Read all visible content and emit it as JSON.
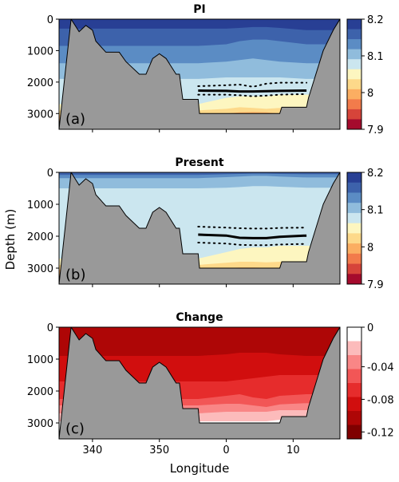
{
  "chart_data": {
    "type": "contour",
    "xlabel": "Longitude",
    "ylabel": "Depth (m)",
    "xticks": [
      340,
      350,
      0,
      10
    ],
    "yticks": [
      0,
      1000,
      2000,
      3000
    ],
    "x_domain": [
      -25,
      17
    ],
    "ylim": [
      3500,
      0
    ],
    "panels": [
      {
        "label": "(a)",
        "title": "PI",
        "colorbar": {
          "ticks": [
            "8.2",
            "8.1",
            "8",
            "7.9"
          ],
          "bands": [
            "#283f94",
            "#3d62ab",
            "#5b8cc4",
            "#90bcdc",
            "#cbe6ef",
            "#fdf6c0",
            "#fdd98a",
            "#fbae62",
            "#f27b4b",
            "#d6443a",
            "#a50b2d"
          ]
        },
        "layers": [
          {
            "value": "#3d62ab",
            "y": [
              300,
              300,
              280,
              250,
              250,
              280,
              350
            ]
          },
          {
            "value": "#5b8cc4",
            "y": [
              850,
              800,
              700,
              650,
              650,
              700,
              800
            ]
          },
          {
            "value": "#90bcdc",
            "y": [
              1400,
              1350,
              1300,
              1250,
              1300,
              1350,
              1400
            ]
          },
          {
            "value": "#cbe6ef",
            "y": [
              1900,
              1850,
              1850,
              1850,
              1850,
              1850,
              1900
            ]
          },
          {
            "value": "#fdf6c0",
            "y": [
              2700,
              2500,
              2450,
              2450,
              2450,
              2400,
              2400
            ]
          },
          {
            "value": "#fdd98a",
            "y": [
              2900,
              2850,
              2800,
              2820,
              2850,
              2820,
              2800
            ]
          },
          {
            "value": "#fbae62",
            "y": [
              3050,
              3000,
              2960,
              2950,
              2960,
              3000,
              3050
            ]
          }
        ],
        "lysocline": {
          "solid": [
            2270,
            2280,
            2300,
            2300,
            2290,
            2280,
            2270
          ],
          "dotted_upper": [
            2130,
            2100,
            2080,
            2150,
            2050,
            2020,
            2020
          ],
          "dotted_lower": [
            2400,
            2400,
            2420,
            2450,
            2430,
            2400,
            2380
          ]
        }
      },
      {
        "label": "(b)",
        "title": "Present",
        "colorbar": {
          "ticks": [
            "8.2",
            "8.1",
            "8",
            "7.9"
          ],
          "bands": [
            "#283f94",
            "#3d62ab",
            "#5b8cc4",
            "#90bcdc",
            "#cbe6ef",
            "#fdf6c0",
            "#fdd98a",
            "#fbae62",
            "#f27b4b",
            "#d6443a",
            "#a50b2d"
          ]
        },
        "layers": [
          {
            "value": "#5b8cc4",
            "y": [
              80,
              60,
              50,
              40,
              40,
              50,
              60
            ]
          },
          {
            "value": "#90bcdc",
            "y": [
              180,
              150,
              130,
              110,
              110,
              130,
              160
            ]
          },
          {
            "value": "#cbe6ef",
            "y": [
              500,
              480,
              460,
              430,
              430,
              450,
              480
            ]
          },
          {
            "value": "#fdf6c0",
            "y": [
              2700,
              2500,
              2400,
              2350,
              2350,
              2300,
              2300
            ]
          },
          {
            "value": "#fdd98a",
            "y": [
              2900,
              2830,
              2800,
              2800,
              2820,
              2800,
              2790
            ]
          },
          {
            "value": "#fbae62",
            "y": [
              3050,
              3000,
              2980,
              2980,
              2990,
              3000,
              3050
            ]
          }
        ],
        "lysocline": {
          "solid": [
            1950,
            1980,
            2050,
            2060,
            2060,
            2020,
            1980
          ],
          "dotted_upper": [
            1700,
            1730,
            1750,
            1760,
            1760,
            1740,
            1730
          ],
          "dotted_lower": [
            2200,
            2230,
            2270,
            2280,
            2280,
            2260,
            2240
          ]
        }
      },
      {
        "label": "(c)",
        "title": "Change",
        "colorbar": {
          "ticks": [
            "0",
            "-0.04",
            "-0.08",
            "-0.12"
          ],
          "bands": [
            "#ffffff",
            "#fcbbbb",
            "#f98686",
            "#f25656",
            "#e62c2c",
            "#d10e0e",
            "#ae0606",
            "#7f0000"
          ]
        },
        "layers": [
          {
            "value": "#d10e0e",
            "y": [
              900,
              850,
              800,
              800,
              800,
              850,
              900
            ]
          },
          {
            "value": "#e62c2c",
            "y": [
              1700,
              1700,
              1650,
              1600,
              1550,
              1500,
              1500
            ]
          },
          {
            "value": "#f25656",
            "y": [
              2250,
              2150,
              2100,
              2200,
              2250,
              2150,
              2100
            ]
          },
          {
            "value": "#f98686",
            "y": [
              2450,
              2400,
              2400,
              2450,
              2500,
              2420,
              2380
            ]
          },
          {
            "value": "#fcbbbb",
            "y": [
              2700,
              2650,
              2650,
              2650,
              2650,
              2600,
              2600
            ]
          },
          {
            "value": "#ffffff",
            "y": [
              2950,
              2950,
              2950,
              2950,
              2950,
              2900,
              2800
            ]
          }
        ],
        "lysocline": null
      }
    ],
    "bathymetry_outline": {
      "x": [
        -25,
        -23.2,
        -22,
        -21,
        -20,
        -19.5,
        -18,
        -16,
        -15,
        -13,
        -12,
        -11,
        -10,
        -9,
        -7.5,
        -7,
        -6.5,
        -4.2,
        -4,
        8,
        8.3,
        12,
        12.3,
        14.5,
        16,
        17
      ],
      "depth": [
        3500,
        0,
        400,
        200,
        350,
        700,
        1050,
        1050,
        1350,
        1750,
        1750,
        1250,
        1100,
        1250,
        1750,
        1750,
        2550,
        2550,
        3000,
        3000,
        2800,
        2800,
        2500,
        1000,
        350,
        0
      ]
    },
    "layer_x": [
      -4.2,
      0,
      2,
      4,
      6,
      8,
      12
    ],
    "upper_colors": {
      "PI": [
        "#283f94",
        "#3d62ab",
        "#5b8cc4",
        "#90bcdc",
        "#cbe6ef",
        "#fdf6c0",
        "#fdd98a",
        "#fbae62"
      ],
      "Present": [
        "#3d62ab",
        "#5b8cc4",
        "#90bcdc",
        "#cbe6ef",
        "#fdf6c0",
        "#fdd98a",
        "#fbae62"
      ],
      "Change": [
        "#ae0606",
        "#d10e0e",
        "#e62c2c",
        "#f25656",
        "#f98686",
        "#fcbbbb",
        "#ffffff"
      ]
    }
  }
}
